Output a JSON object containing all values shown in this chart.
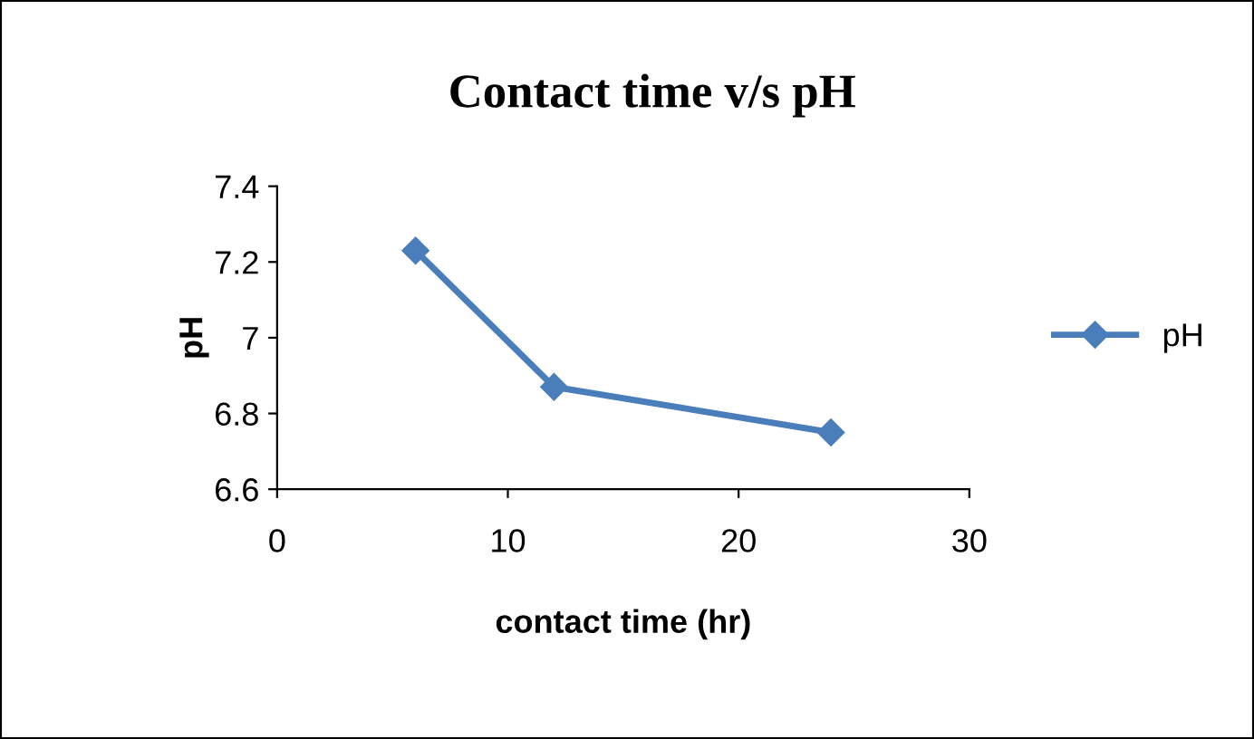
{
  "chart_data": {
    "type": "line",
    "title": "Contact time v/s pH",
    "xlabel": "contact time (hr)",
    "ylabel": "pH",
    "x": [
      6,
      12,
      24
    ],
    "series": [
      {
        "name": "pH",
        "color": "#4a7ebb",
        "values": [
          7.23,
          6.87,
          6.75
        ]
      }
    ],
    "xlim": [
      0,
      30
    ],
    "xticks": [
      0,
      10,
      20,
      30
    ],
    "ylim": [
      6.6,
      7.4
    ],
    "yticks": [
      6.6,
      6.8,
      7,
      7.2,
      7.4
    ],
    "marker": "diamond",
    "line_style": "solid",
    "grid": false,
    "legend": "right"
  }
}
